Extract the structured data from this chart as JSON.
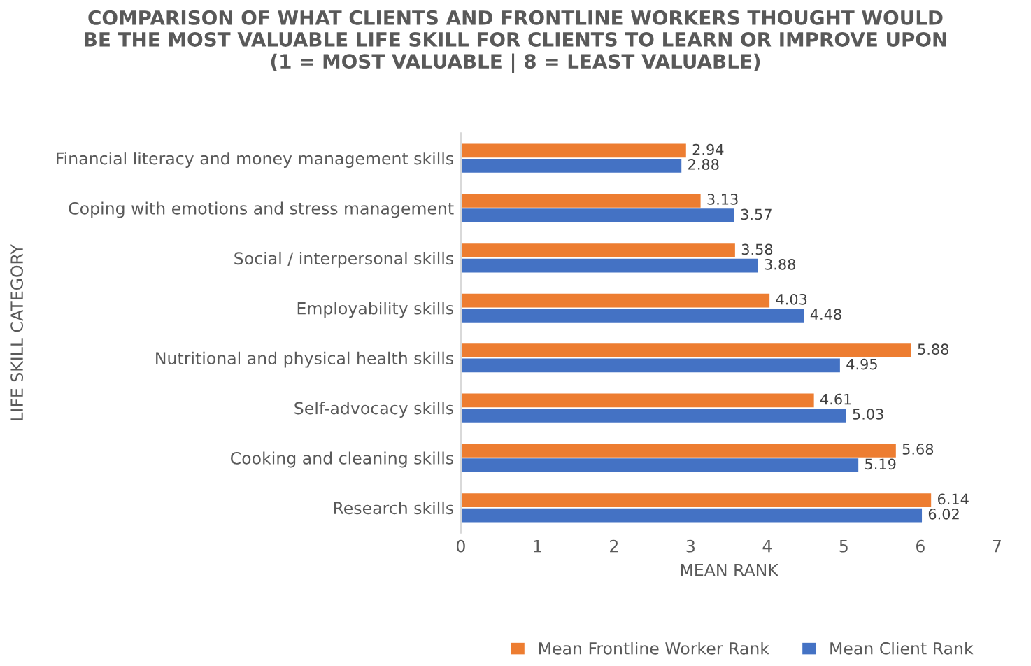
{
  "chart_data": {
    "type": "bar",
    "orientation": "horizontal",
    "title": "COMPARISON OF WHAT CLIENTS AND FRONTLINE WORKERS THOUGHT WOULD\nBE THE MOST VALUABLE LIFE SKILL FOR CLIENTS TO LEARN OR IMPROVE UPON\n(1 = MOST VALUABLE | 8 = LEAST VALUABLE)",
    "xlabel": "MEAN RANK",
    "ylabel": "LIFE SKILL CATEGORY",
    "categories": [
      "Financial literacy and money management skills",
      "Coping with emotions and stress management",
      "Social / interpersonal skills",
      "Employability skills",
      "Nutritional and physical health skills",
      "Self-advocacy skills",
      "Cooking and cleaning skills",
      "Research skills"
    ],
    "series": [
      {
        "name": "Mean Frontline Worker Rank",
        "color": "#ed7d31",
        "values": [
          2.94,
          3.13,
          3.58,
          4.03,
          5.88,
          4.61,
          5.68,
          6.14
        ]
      },
      {
        "name": "Mean Client Rank",
        "color": "#4472c4",
        "values": [
          2.88,
          3.57,
          3.88,
          4.48,
          4.95,
          5.03,
          5.19,
          6.02
        ]
      }
    ],
    "xlim": [
      0,
      7
    ],
    "xticks": [
      0,
      1,
      2,
      3,
      4,
      5,
      6,
      7
    ],
    "data_labels": true,
    "legend": "bottom",
    "grid": false
  }
}
